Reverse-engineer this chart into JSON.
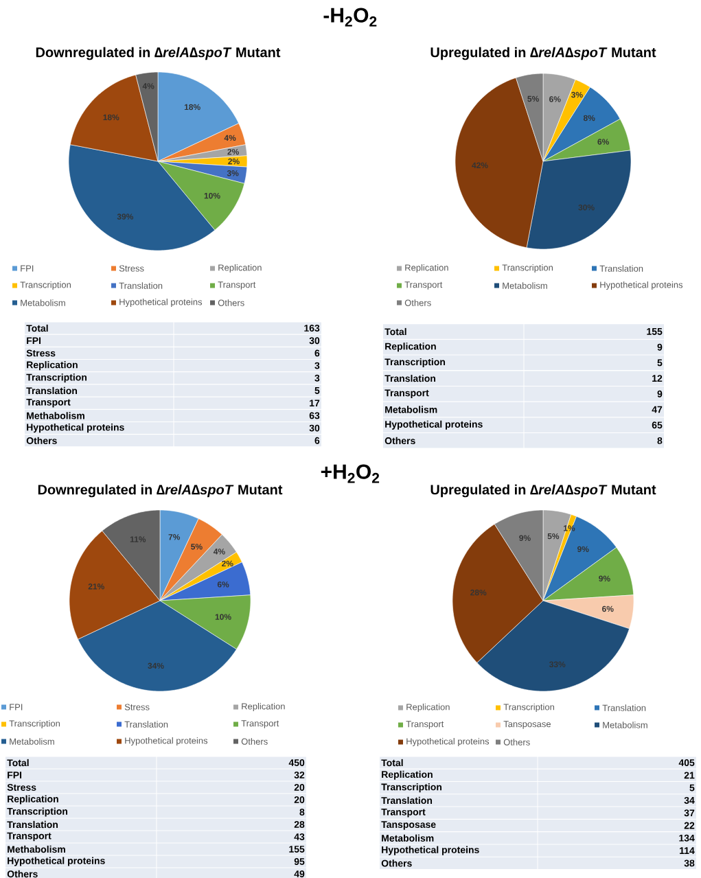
{
  "chart_data": [
    {
      "type": "other",
      "title": "-H$_{2}$O$_{2}$"
    },
    {
      "type": "pie",
      "title": "Downregulated in ∆*relA*∆*spoT* Mutant",
      "legend": "bottom",
      "categories": [
        "FPI",
        "Stress",
        "Replication",
        "Transcription",
        "Translation",
        "Transport",
        "Metabolism",
        "Hypothetical proteins",
        "Others"
      ],
      "values": [
        18,
        4,
        2,
        2,
        3,
        10,
        39,
        18,
        4
      ],
      "value_labels": [
        "18%",
        "4%",
        "2%",
        "2%",
        "3%",
        "10%",
        "39%",
        "18%",
        "4%"
      ],
      "colors": [
        "#5b9bd5",
        "#ed7d31",
        "#a5a5a5",
        "#ffc000",
        "#4472c4",
        "#70ad47",
        "#255e91",
        "#9e480e",
        "#636363"
      ],
      "annotations": [
        "Total",
        "163",
        "FPI",
        "30",
        "Stress",
        "6",
        "Replication",
        "3",
        "Transcription",
        "3",
        "Translation",
        "5",
        "Transport",
        "17",
        "Methabolism",
        "63",
        "Hypothetical proteins",
        "30",
        "Others",
        "6"
      ]
    },
    {
      "type": "pie",
      "title": "Upregulated in ∆*relA*∆*spoT* Mutant",
      "legend": "bottom",
      "categories": [
        "Replication",
        "Transcription",
        "Translation",
        "Transport",
        "Metabolism",
        "Hypothetical proteins",
        "Others"
      ],
      "values": [
        6,
        3,
        8,
        6,
        30,
        42,
        5
      ],
      "value_labels": [
        "6%",
        "3%",
        "8%",
        "6%",
        "30%",
        "42%",
        "5%"
      ],
      "colors": [
        "#a5a5a5",
        "#ffc000",
        "#2e75b6",
        "#70ad47",
        "#1f4e79",
        "#843c0c",
        "#7f7f7f"
      ],
      "annotations": [
        "Total",
        "155",
        "Replication",
        "9",
        "Transcription",
        "5",
        "Translation",
        "12",
        "Transport",
        "9",
        "Metabolism",
        "47",
        "Hypothetical proteins",
        "65",
        "Others",
        "8"
      ]
    },
    {
      "type": "other",
      "title": "+H$_{2}$O$_{2}$"
    },
    {
      "type": "pie",
      "title": "Downregulated in ∆*relA*∆*spoT* Mutant",
      "legend": "bottom",
      "categories": [
        "FPI",
        "Stress",
        "Replication",
        "Transcription",
        "Translation",
        "Transport",
        "Metabolism",
        "Hypothetical proteins",
        "Others"
      ],
      "values": [
        7,
        5,
        4,
        2,
        6,
        10,
        34,
        21,
        11
      ],
      "value_labels": [
        "7%",
        "5%",
        "4%",
        "2%",
        "6%",
        "10%",
        "34%",
        "21%",
        "11%"
      ],
      "colors": [
        "#5b9bd5",
        "#ed7d31",
        "#a5a5a5",
        "#ffc000",
        "#3b6cd0",
        "#70ad47",
        "#255e91",
        "#9e480e",
        "#636363"
      ],
      "annotations": [
        "Total",
        "450",
        "FPI",
        "32",
        "Stress",
        "20",
        "Replication",
        "20",
        "Transcription",
        "8",
        "Translation",
        "28",
        "Transport",
        "43",
        "Methabolism",
        "155",
        "Hypothetical proteins",
        "95",
        "Others",
        "49"
      ]
    },
    {
      "type": "pie",
      "title": "Upregulated in ∆*relA*∆*spoT* Mutant",
      "legend": "bottom",
      "categories": [
        "Replication",
        "Transcription",
        "Translation",
        "Transport",
        "Tansposase",
        "Metabolism",
        "Hypothetical proteins",
        "Others"
      ],
      "values": [
        5,
        1,
        9,
        9,
        6,
        33,
        28,
        9
      ],
      "value_labels": [
        "5%",
        "1%",
        "9%",
        "9%",
        "6%",
        "33%",
        "28%",
        "9%"
      ],
      "colors": [
        "#a5a5a5",
        "#ffc000",
        "#2e75b6",
        "#70ad47",
        "#f8cbad",
        "#1f4e79",
        "#843c0c",
        "#7f7f7f"
      ],
      "annotations": [
        "Total",
        "405",
        "Replication",
        "21",
        "Transcription",
        "5",
        "Translation",
        "34",
        "Transport",
        "37",
        "Tansposase",
        "22",
        "Metabolism",
        "134",
        "Hypothetical proteins",
        "114",
        "Others",
        "38"
      ]
    }
  ]
}
